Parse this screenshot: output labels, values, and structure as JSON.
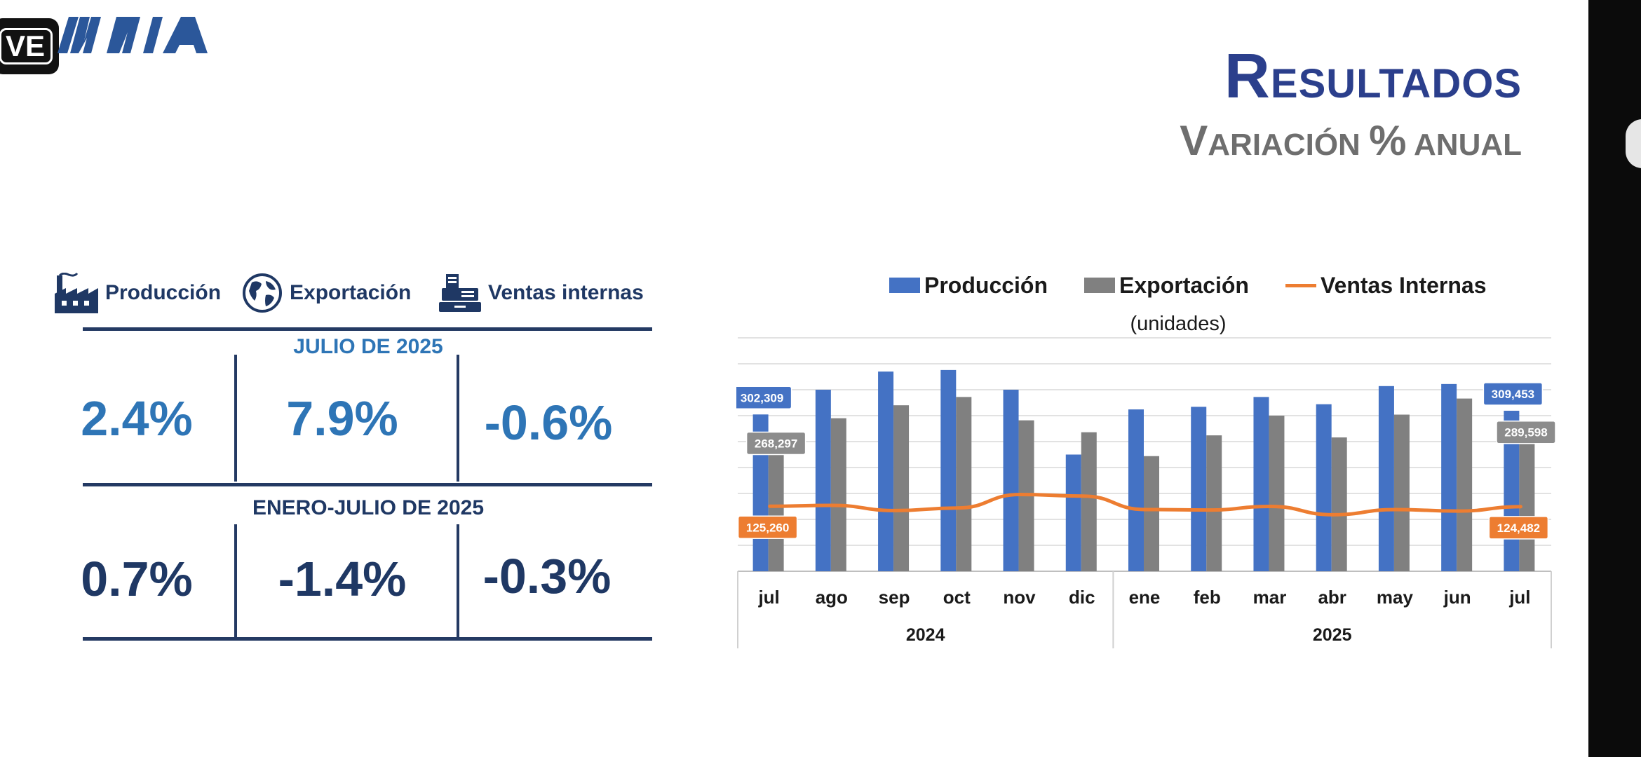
{
  "overlay": {
    "live_badge": "VE"
  },
  "logo": {
    "text": "AMIA",
    "color": "#2b579a"
  },
  "header": {
    "title_first": "R",
    "title_rest": "ESULTADOS",
    "subtitle_a1": "V",
    "subtitle_a2": "ARIACIÓN ",
    "subtitle_b1": "%",
    "subtitle_b2": " ANUAL",
    "title_color": "#2b3f8c",
    "subtitle_color": "#6e6e6e"
  },
  "kpi": {
    "headers": [
      {
        "label": "Producción",
        "icon": "factory-icon"
      },
      {
        "label": "Exportación",
        "icon": "globe-icon"
      },
      {
        "label": "Ventas internas",
        "icon": "cash-register-icon"
      }
    ],
    "periods": [
      {
        "label": "JULIO DE 2025",
        "values": [
          "2.4%",
          "7.9%",
          "-0.6%"
        ]
      },
      {
        "label": "ENERO-JULIO DE 2025",
        "values": [
          "0.7%",
          "-1.4%",
          "-0.3%"
        ]
      }
    ],
    "colors": {
      "accent": "#2e75b6",
      "dark": "#1f3864",
      "rule": "#243a63"
    }
  },
  "chart_data": {
    "type": "bar",
    "title": "",
    "subtitle": "(unidades)",
    "categories": [
      "jul",
      "ago",
      "sep",
      "oct",
      "nov",
      "dic",
      "ene",
      "feb",
      "mar",
      "abr",
      "may",
      "jun",
      "jul"
    ],
    "year_groups": [
      {
        "label": "2024",
        "count": 6
      },
      {
        "label": "2025",
        "count": 7
      }
    ],
    "series": [
      {
        "name": "Producción",
        "kind": "bar",
        "color": "#4472c4",
        "values": [
          302309,
          350000,
          385000,
          388000,
          350000,
          225000,
          312000,
          317000,
          336000,
          322000,
          357000,
          361000,
          309453
        ]
      },
      {
        "name": "Exportación",
        "kind": "bar",
        "color": "#808080",
        "values": [
          268297,
          295000,
          320000,
          336000,
          291000,
          268000,
          222000,
          262000,
          300000,
          258000,
          302000,
          333000,
          289598
        ]
      },
      {
        "name": "Ventas Internas",
        "kind": "line",
        "color": "#ed7d31",
        "values": [
          125260,
          127000,
          117000,
          122000,
          148000,
          145000,
          119000,
          118000,
          125000,
          109000,
          119000,
          116000,
          124482
        ]
      }
    ],
    "data_labels": [
      {
        "series": 0,
        "index": 0,
        "text": "302,309"
      },
      {
        "series": 1,
        "index": 0,
        "text": "268,297"
      },
      {
        "series": 2,
        "index": 0,
        "text": "125,260"
      },
      {
        "series": 0,
        "index": 12,
        "text": "309,453"
      },
      {
        "series": 1,
        "index": 12,
        "text": "289,598"
      },
      {
        "series": 2,
        "index": 12,
        "text": "124,482"
      }
    ],
    "ylim": [
      0,
      450000
    ],
    "grid": true,
    "legend_position": "top"
  }
}
